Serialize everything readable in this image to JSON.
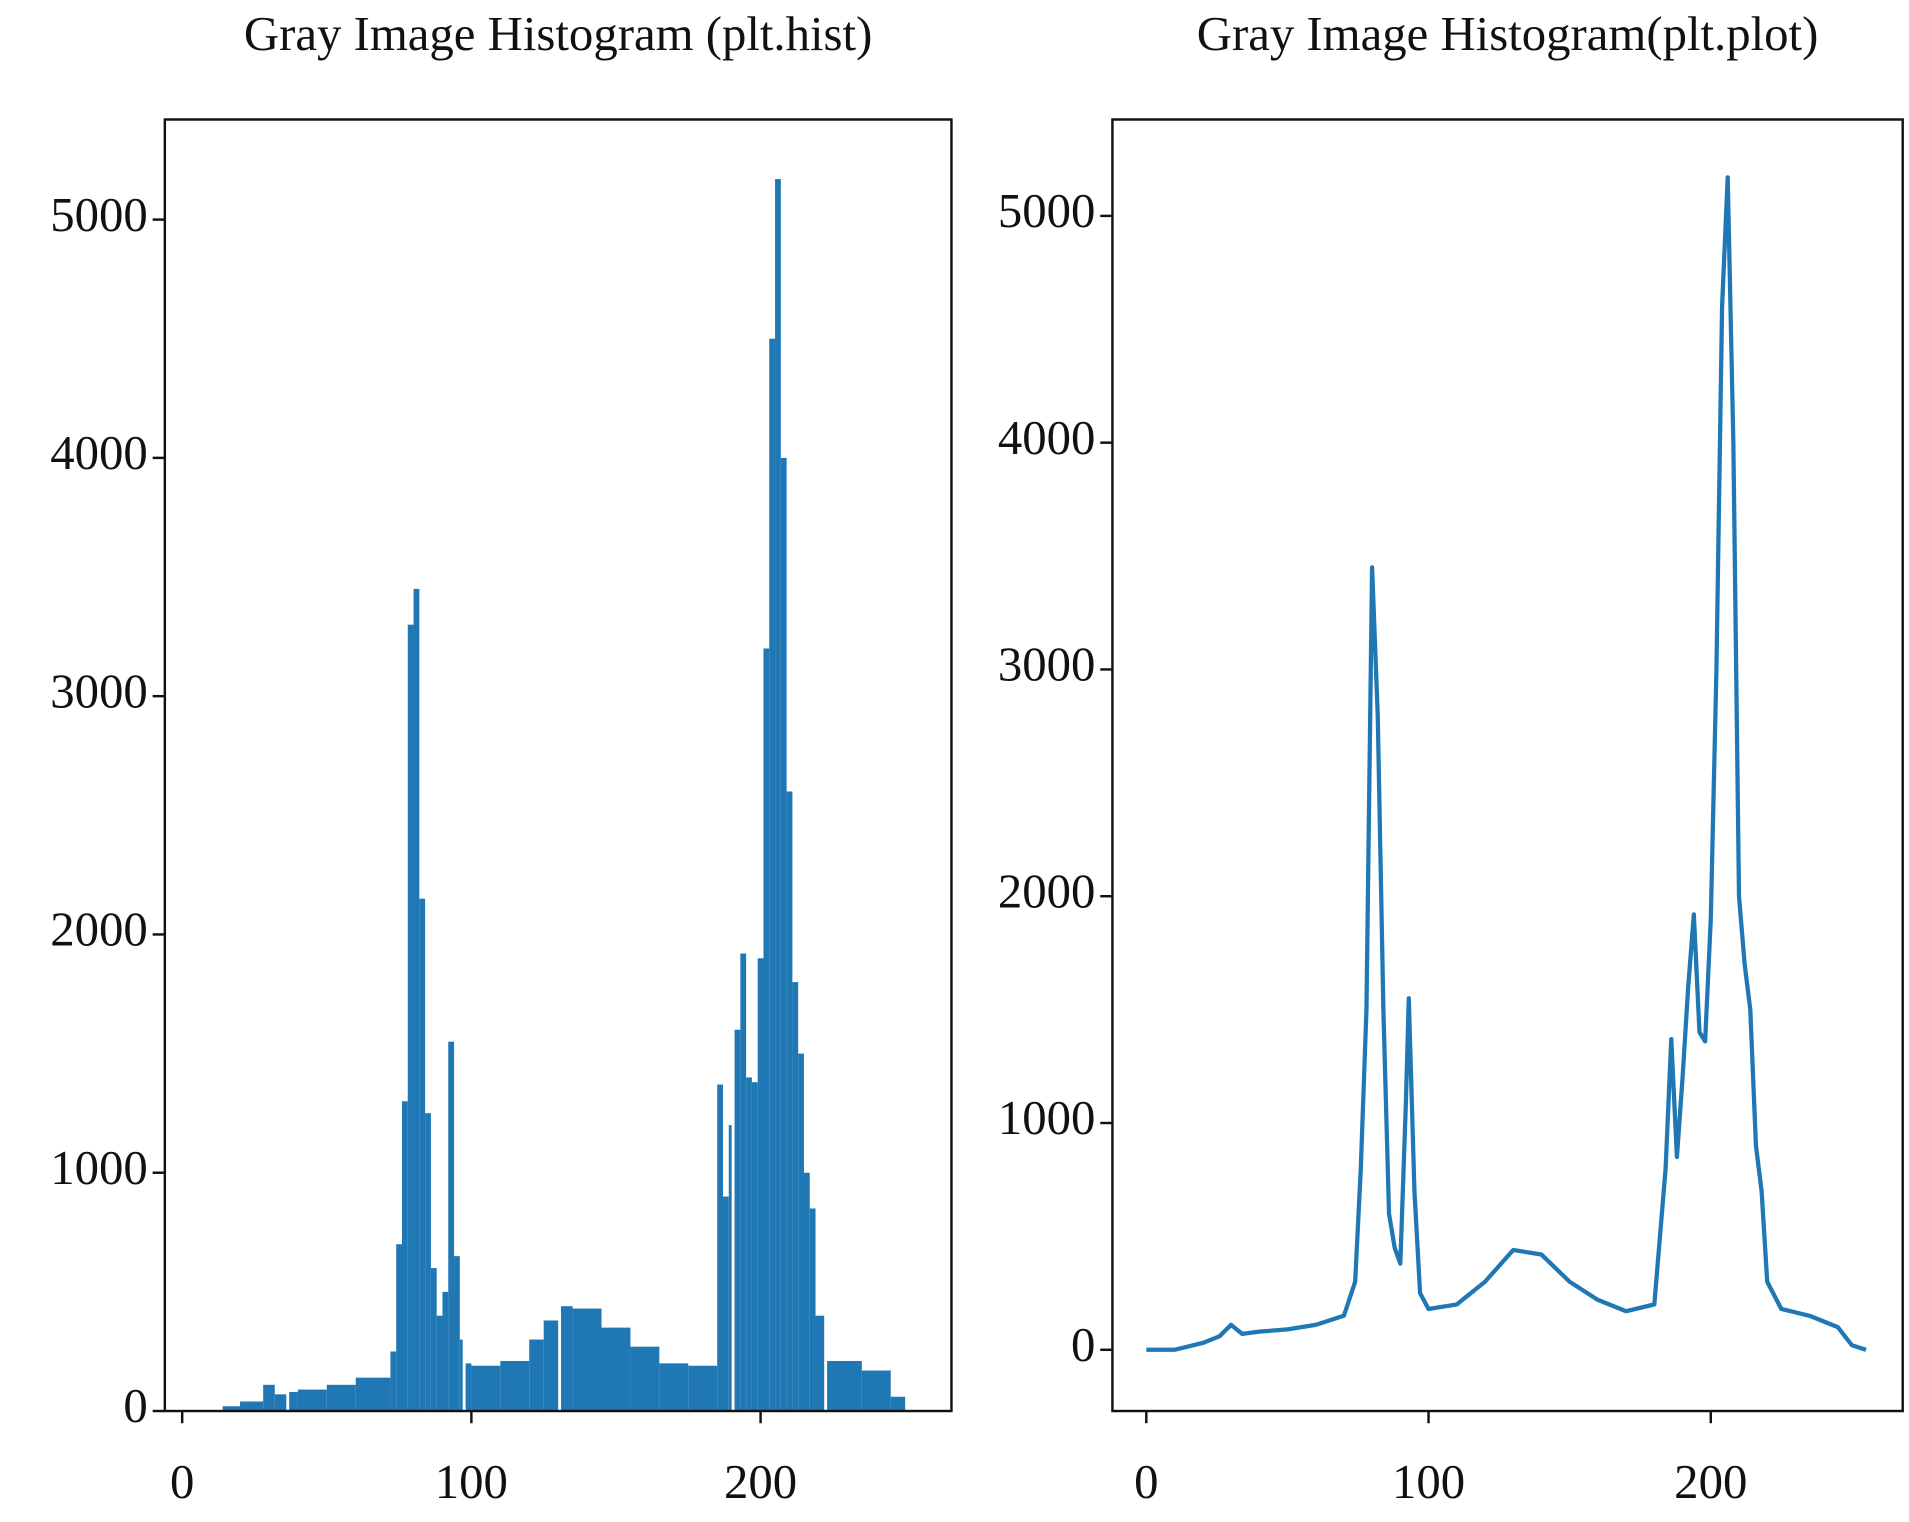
{
  "chart_data": [
    {
      "type": "histogram",
      "title": "Gray Image Histogram (plt.hist)",
      "color": "#1f77b4",
      "bins": [
        14,
        20,
        28,
        32,
        36,
        37,
        40,
        50,
        60,
        72,
        74,
        76,
        78,
        80,
        82,
        84,
        86,
        88,
        90,
        92,
        94,
        96,
        97,
        98,
        100,
        110,
        120,
        125,
        130,
        131,
        135,
        145,
        155,
        165,
        175,
        185,
        187,
        189,
        190,
        191,
        193,
        195,
        197,
        199,
        201,
        203,
        205,
        207,
        209,
        211,
        213,
        215,
        217,
        219,
        222,
        223,
        235,
        245,
        250
      ],
      "values": [
        20,
        40,
        110,
        70,
        0,
        80,
        90,
        110,
        140,
        250,
        700,
        1300,
        3300,
        3450,
        2150,
        1250,
        600,
        400,
        500,
        1550,
        650,
        300,
        0,
        200,
        190,
        210,
        300,
        380,
        0,
        440,
        430,
        350,
        270,
        200,
        190,
        1370,
        900,
        1200,
        0,
        1600,
        1920,
        1400,
        1380,
        1900,
        3200,
        4500,
        5170,
        4000,
        2600,
        1800,
        1500,
        1000,
        850,
        400,
        0,
        210,
        170,
        60
      ],
      "xlim": [
        -6,
        266
      ],
      "xticks": [
        0,
        100,
        200
      ],
      "ylim": [
        0,
        5420
      ],
      "yticks": [
        0,
        1000,
        2000,
        3000,
        4000,
        5000
      ],
      "grid": false
    },
    {
      "type": "line",
      "title": "Gray Image Histogram(plt.plot)",
      "color": "#1f77b4",
      "x": [
        0,
        10,
        20,
        26,
        30,
        34,
        40,
        50,
        60,
        70,
        74,
        76,
        78,
        80,
        82,
        84,
        86,
        88,
        90,
        92,
        93,
        95,
        97,
        100,
        110,
        120,
        130,
        140,
        150,
        160,
        170,
        180,
        184,
        186,
        188,
        190,
        192,
        194,
        196,
        198,
        200,
        202,
        204,
        206,
        208,
        210,
        212,
        214,
        216,
        218,
        220,
        225,
        235,
        245,
        250,
        255
      ],
      "values": [
        0,
        0,
        30,
        60,
        110,
        70,
        80,
        90,
        110,
        150,
        300,
        800,
        1500,
        3450,
        2800,
        1500,
        600,
        450,
        380,
        1100,
        1550,
        700,
        250,
        180,
        200,
        300,
        440,
        420,
        300,
        220,
        170,
        200,
        800,
        1370,
        850,
        1200,
        1600,
        1920,
        1400,
        1360,
        1900,
        3000,
        4600,
        5170,
        4000,
        2000,
        1700,
        1500,
        900,
        700,
        300,
        180,
        150,
        100,
        20,
        0
      ],
      "xlim": [
        -12,
        268
      ],
      "xticks": [
        0,
        100,
        200
      ],
      "ylim": [
        -270,
        5425
      ],
      "yticks": [
        0,
        1000,
        2000,
        3000,
        4000,
        5000
      ],
      "grid": false
    }
  ]
}
